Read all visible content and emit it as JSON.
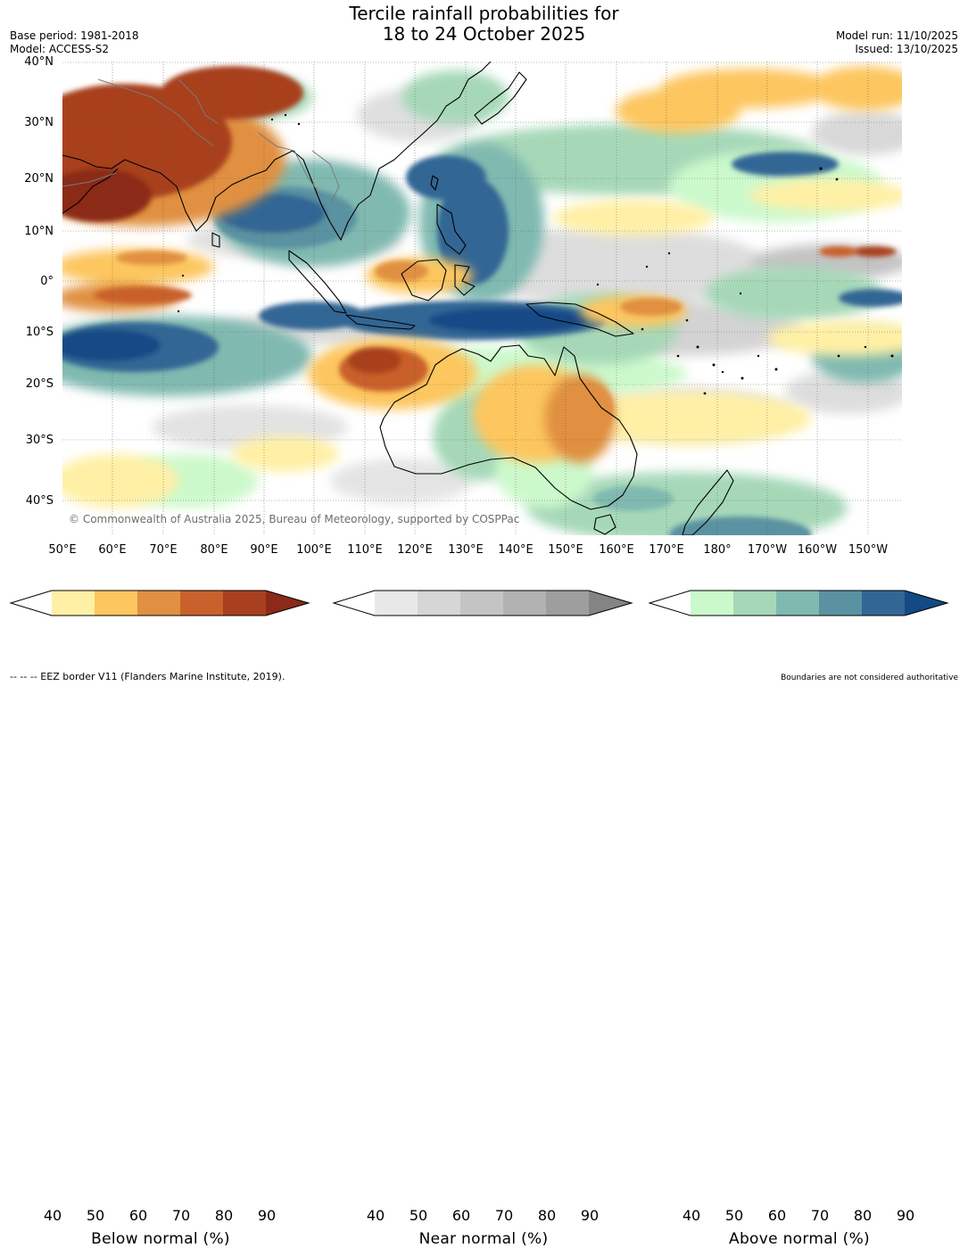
{
  "title_line1": "Tercile rainfall probabilities for",
  "title_line2": "18 to 24 October 2025",
  "base_period": "Base period: 1981-2018",
  "model": "Model: ACCESS-S2",
  "model_run": "Model run: 11/10/2025",
  "issued": "Issued: 13/10/2025",
  "copyright": "© Commonwealth of Australia 2025, Bureau of Meteorology, supported by COSPPac",
  "lat_labels": [
    "40°N",
    "30°N",
    "20°N",
    "10°N",
    "0°",
    "10°S",
    "20°S",
    "30°S",
    "40°S"
  ],
  "lon_labels": [
    "50°E",
    "60°E",
    "70°E",
    "80°E",
    "90°E",
    "100°E",
    "110°E",
    "120°E",
    "130°E",
    "140°E",
    "150°E",
    "160°E",
    "170°E",
    "180°",
    "170°W",
    "160°W",
    "150°W"
  ],
  "legends": {
    "below": {
      "title": "Below normal (%)",
      "ticks": [
        "40",
        "50",
        "60",
        "70",
        "80",
        "90"
      ],
      "colors": [
        "#ffffff",
        "#fff0a6",
        "#fdc65e",
        "#e09041",
        "#c9612c",
        "#a8401f",
        "#8b2a18"
      ]
    },
    "near": {
      "title": "Near normal (%)",
      "ticks": [
        "40",
        "50",
        "60",
        "70",
        "80",
        "90"
      ],
      "colors": [
        "#ffffff",
        "#e8e8e8",
        "#d6d6d6",
        "#c4c4c4",
        "#b2b2b2",
        "#9e9e9e",
        "#848484"
      ]
    },
    "above": {
      "title": "Above normal (%)",
      "ticks": [
        "40",
        "50",
        "60",
        "70",
        "80",
        "90"
      ],
      "colors": [
        "#ffffff",
        "#ccf9cc",
        "#a6d8b8",
        "#80b9b0",
        "#5a92a1",
        "#326694",
        "#134a86"
      ]
    }
  },
  "footer_left": "--  --  -- EEZ border V11 (Flanders Marine Institute, 2019).",
  "footer_right": "Boundaries are not considered authoritative"
}
